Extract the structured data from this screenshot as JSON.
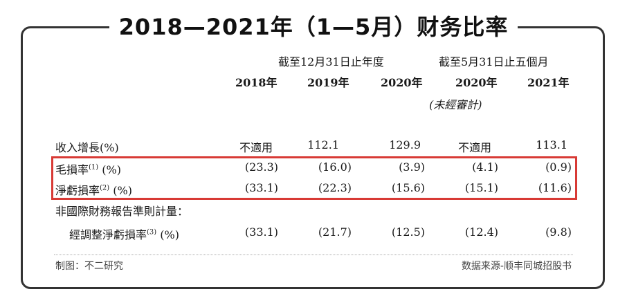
{
  "title": "2018—2021年（1—5月）财务比率",
  "header": {
    "group1": "截至12月31日止年度",
    "group2": "截至5月31日止五個月",
    "years": [
      "2018年",
      "2019年",
      "2020年",
      "2020年",
      "2021年"
    ],
    "unaudited_note": "(未經審計)"
  },
  "rows": [
    {
      "label": "收入增長(%)",
      "sup": "",
      "suffix": "",
      "values": [
        "不適用",
        "112.1",
        "129.9",
        "不適用",
        "113.1"
      ]
    },
    {
      "label": "毛損率",
      "sup": "(1)",
      "suffix": " (%)",
      "values": [
        "(23.3)",
        "(16.0)",
        "(3.9)",
        "(4.1)",
        "(0.9)"
      ]
    },
    {
      "label": "淨虧損率",
      "sup": "(2)",
      "suffix": " (%)",
      "values": [
        "(33.1)",
        "(22.3)",
        "(15.6)",
        "(15.1)",
        "(11.6)"
      ]
    },
    {
      "label": "非國際財務報告準則計量：",
      "sup": "",
      "suffix": "",
      "values": [
        "",
        "",
        "",
        "",
        ""
      ]
    },
    {
      "label": "經調整淨虧損率",
      "sup": "(3)",
      "suffix": " (%)",
      "values": [
        "(33.1)",
        "(21.7)",
        "(12.5)",
        "(12.4)",
        "(9.8)"
      ]
    }
  ],
  "footer": {
    "left": "制图：不二研究",
    "right": "数据来源-顺丰同城招股书"
  },
  "colors": {
    "highlight_border": "#d83a35",
    "frame": "#333333"
  }
}
